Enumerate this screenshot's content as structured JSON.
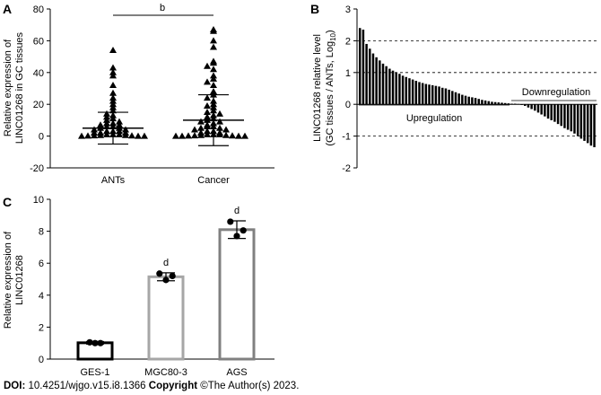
{
  "footer": {
    "doi_label": "DOI:",
    "doi_value": "10.4251/wjgo.v15.i8.1366",
    "copyright_label": "Copyright",
    "copyright_value": "©The Author(s) 2023."
  },
  "panels": {
    "a": {
      "letter": "A"
    },
    "b": {
      "letter": "B"
    },
    "c": {
      "letter": "C"
    }
  },
  "colors": {
    "ges1": "#000000",
    "mgc": "#a6a6a6",
    "ags": "#808080"
  },
  "chart_data": [
    {
      "id": "A",
      "type": "scatter",
      "categories": [
        "ANTs",
        "Cancer"
      ],
      "ylabel_lines": [
        "Relative expression of",
        "LINC01268 in GC tissues"
      ],
      "ylim": [
        -20,
        80
      ],
      "yticks": [
        -20,
        0,
        20,
        40,
        60,
        80
      ],
      "series": [
        {
          "category": "ANTs",
          "mean": 5,
          "sd": 10,
          "values": [
            54,
            43,
            40,
            38,
            32,
            27,
            24,
            22,
            20,
            18,
            16,
            14,
            13,
            12,
            11,
            10,
            9,
            8,
            8,
            7,
            7,
            6,
            6,
            5,
            5,
            4,
            4,
            3,
            3,
            3,
            2,
            2,
            2,
            1,
            1,
            1,
            0.5,
            0.5,
            0.3,
            0.2,
            0.1,
            0,
            0,
            0
          ]
        },
        {
          "category": "Cancer",
          "mean": 10,
          "sd": 16,
          "values": [
            67,
            66,
            60,
            56,
            47,
            46,
            44,
            42,
            38,
            36,
            34,
            32,
            28,
            26,
            24,
            22,
            20,
            19,
            18,
            16,
            15,
            14,
            13,
            12,
            11,
            10,
            9,
            9,
            8,
            7,
            6,
            6,
            5,
            5,
            4,
            4,
            3,
            3,
            2,
            2,
            1,
            1,
            1,
            0.5,
            0.5,
            0.3,
            0.2,
            0.1,
            0,
            0,
            0,
            0
          ]
        }
      ],
      "annotation": "b"
    },
    {
      "id": "B",
      "type": "bar",
      "ylabel_lines": [
        "LINC01268 relative level",
        "(GC tissues / ANTs, Log",
        "10",
        ")"
      ],
      "ylim": [
        -2,
        3
      ],
      "yticks": [
        -2,
        -1,
        0,
        1,
        2,
        3
      ],
      "reference_lines": [
        2,
        1,
        -1
      ],
      "labels": {
        "up": "Upregulation",
        "down": "Downregulation"
      },
      "values": [
        2.4,
        2.35,
        1.9,
        1.75,
        1.6,
        1.48,
        1.38,
        1.28,
        1.2,
        1.12,
        1.06,
        1.0,
        0.96,
        0.9,
        0.86,
        0.82,
        0.78,
        0.74,
        0.7,
        0.67,
        0.64,
        0.62,
        0.6,
        0.58,
        0.56,
        0.52,
        0.5,
        0.46,
        0.42,
        0.38,
        0.34,
        0.3,
        0.27,
        0.24,
        0.22,
        0.2,
        0.17,
        0.14,
        0.12,
        0.1,
        0.08,
        0.07,
        0.06,
        0.05,
        0.04,
        0.03,
        0.02,
        0.02,
        0.01,
        -0.02,
        -0.05,
        -0.1,
        -0.15,
        -0.2,
        -0.26,
        -0.32,
        -0.38,
        -0.45,
        -0.5,
        -0.55,
        -0.62,
        -0.68,
        -0.75,
        -0.8,
        -0.85,
        -0.92,
        -1.0,
        -1.08,
        -1.15,
        -1.22,
        -1.3,
        -1.35
      ]
    },
    {
      "id": "C",
      "type": "bar",
      "categories": [
        "GES-1",
        "MGC80-3",
        "AGS"
      ],
      "ylabel_lines": [
        "Relative expression of",
        "LINC01268"
      ],
      "ylim": [
        0,
        10
      ],
      "yticks": [
        0,
        2,
        4,
        6,
        8,
        10
      ],
      "values": [
        1.02,
        5.15,
        8.1
      ],
      "errors": [
        0.08,
        0.25,
        0.55
      ],
      "points": [
        [
          1.05,
          1.0,
          1.0
        ],
        [
          5.35,
          4.95,
          5.2
        ],
        [
          8.6,
          7.7,
          8.05
        ]
      ],
      "sig": [
        "",
        "d",
        "d"
      ]
    }
  ]
}
